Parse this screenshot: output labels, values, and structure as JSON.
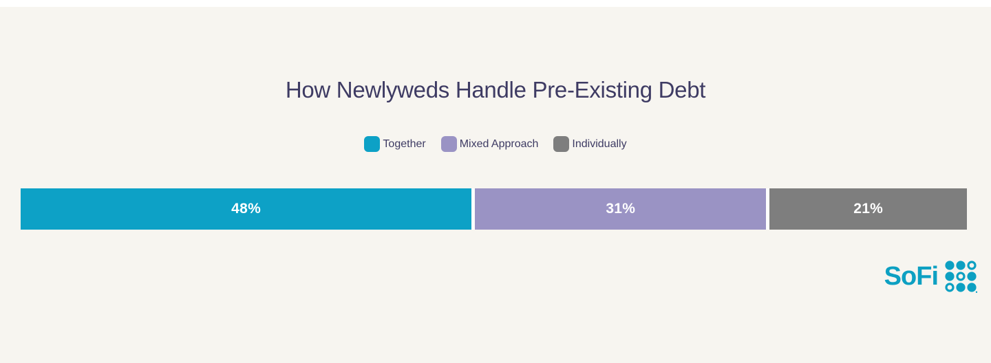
{
  "page": {
    "background_color": "#F7F5F0",
    "text_color": "#3E3B63"
  },
  "chart_data": {
    "type": "bar",
    "variant": "horizontal-stacked-single-bar",
    "title": "How Newlyweds Handle Pre-Existing Debt",
    "categories": [
      "Together",
      "Mixed Approach",
      "Individually"
    ],
    "values": [
      48,
      31,
      21
    ],
    "value_labels": [
      "48%",
      "31%",
      "21%"
    ],
    "unit": "%",
    "colors": [
      "#0DA1C6",
      "#9A93C4",
      "#7E7E7E"
    ],
    "value_label_color": "#FFFFFF",
    "legend_position": "top-center",
    "axes": "none",
    "grid": false,
    "xlim": [
      0,
      100
    ]
  },
  "branding": {
    "logo_text": "SoFi",
    "logo_color": "#0DA0C2",
    "logo_mark": "sofi-nine-dot-grid"
  }
}
